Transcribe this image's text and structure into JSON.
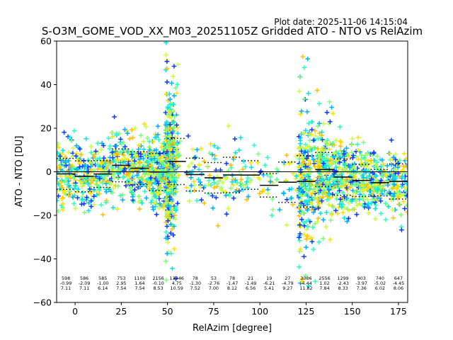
{
  "header": {
    "plot_date": "Plot date: 2025-11-06 14:15:04"
  },
  "chart_data": {
    "type": "scatter",
    "title": "S-O3M_GOME_VOD_XX_M03_20251105Z Gridded ATO - NTO vs RelAzim",
    "xlabel": "RelAzim [degree]",
    "ylabel": "ATO - NTO [DU]",
    "xlim": [
      -10,
      180
    ],
    "ylim": [
      -60,
      60
    ],
    "xticks": [
      0,
      25,
      50,
      75,
      100,
      125,
      150,
      175
    ],
    "yticks": [
      -60,
      -40,
      -20,
      0,
      20,
      40,
      60
    ],
    "xtick_labels": [
      "0",
      "25",
      "50",
      "75",
      "100",
      "125",
      "150",
      "175"
    ],
    "ytick_labels": [
      "−60",
      "−40",
      "−20",
      "0",
      "20",
      "40",
      "60"
    ],
    "zero_line": 0,
    "marker": "+",
    "point_colors": [
      "#0a3cff",
      "#00b0ff",
      "#00e5e5",
      "#2bffc0",
      "#7dff7a",
      "#c8ff40",
      "#ffe000",
      "#ffbf00"
    ],
    "bins": [
      {
        "x": -5,
        "count": "598",
        "mean": "-0.99",
        "std": "7.11"
      },
      {
        "x": 5,
        "count": "586",
        "mean": "-2.09",
        "std": "7.11"
      },
      {
        "x": 15,
        "count": "585",
        "mean": "-1.00",
        "std": "6.14"
      },
      {
        "x": 25,
        "count": "753",
        "mean": "2.95",
        "std": "7.54"
      },
      {
        "x": 35,
        "count": "1100",
        "mean": "1.64",
        "std": "7.54"
      },
      {
        "x": 45,
        "count": "2156",
        "mean": "-0.10",
        "std": "8.53"
      },
      {
        "x": 55,
        "count": "13346",
        "mean": "4.75",
        "std": "10.59"
      },
      {
        "x": 65,
        "count": "78",
        "mean": "-1.30",
        "std": "7.52"
      },
      {
        "x": 75,
        "count": "53",
        "mean": "-2.76",
        "std": "7.00"
      },
      {
        "x": 85,
        "count": "78",
        "mean": "-1.47",
        "std": "8.12"
      },
      {
        "x": 95,
        "count": "21",
        "mean": "-1.49",
        "std": "6.56"
      },
      {
        "x": 105,
        "count": "19",
        "mean": "-6.21",
        "std": "5.41"
      },
      {
        "x": 115,
        "count": "27",
        "mean": "-4.79",
        "std": "9.27"
      },
      {
        "x": 125,
        "count": "3086",
        "mean": "-4.44",
        "std": "11.82"
      },
      {
        "x": 135,
        "count": "2556",
        "mean": "1.02",
        "std": "7.84"
      },
      {
        "x": 145,
        "count": "1299",
        "mean": "-2.43",
        "std": "8.33"
      },
      {
        "x": 155,
        "count": "903",
        "mean": "-3.97",
        "std": "7.36"
      },
      {
        "x": 165,
        "count": "740",
        "mean": "-5.02",
        "std": "6.02"
      },
      {
        "x": 175,
        "count": "647",
        "mean": "-4.45",
        "std": "8.06"
      }
    ]
  }
}
